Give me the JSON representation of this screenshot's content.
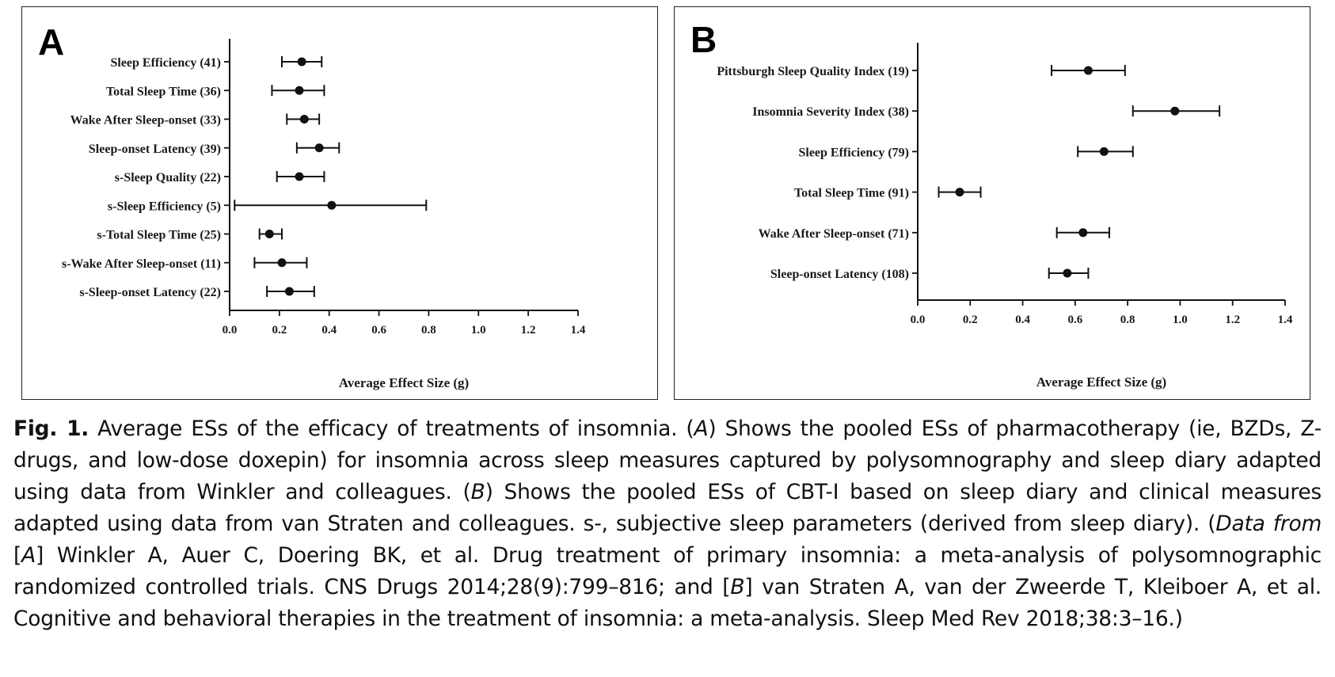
{
  "chart_data": [
    {
      "type": "forest",
      "panel_label": "A",
      "xlabel": "Average Effect Size (g)",
      "xlim": [
        0.0,
        1.4
      ],
      "xticks": [
        "0.0",
        "0.2",
        "0.4",
        "0.6",
        "0.8",
        "1.0",
        "1.2",
        "1.4"
      ],
      "grid": false,
      "categories": [
        "Sleep Efficiency (41)",
        "Total Sleep Time (36)",
        "Wake After Sleep-onset  (33)",
        "Sleep-onset Latency (39)",
        "s-Sleep Quality (22)",
        "s-Sleep Efficiency (5)",
        "s-Total Sleep Time (25)",
        "s-Wake After Sleep-onset  (11)",
        "s-Sleep-onset Latency (22)"
      ],
      "estimates": [
        0.29,
        0.28,
        0.3,
        0.36,
        0.28,
        0.41,
        0.16,
        0.21,
        0.24
      ],
      "ci_low": [
        0.21,
        0.17,
        0.23,
        0.27,
        0.19,
        0.02,
        0.12,
        0.1,
        0.15
      ],
      "ci_high": [
        0.37,
        0.38,
        0.36,
        0.44,
        0.38,
        0.79,
        0.21,
        0.31,
        0.34
      ]
    },
    {
      "type": "forest",
      "panel_label": "B",
      "xlabel": "Average Effect Size (g)",
      "xlim": [
        0.0,
        1.4
      ],
      "xticks": [
        "0.0",
        "0.2",
        "0.4",
        "0.6",
        "0.8",
        "1.0",
        "1.2",
        "1.4"
      ],
      "grid": false,
      "categories": [
        "Pittsburgh Sleep Quality Index (19)",
        "Insomnia Severity Index (38)",
        "Sleep Efficiency (79)",
        "Total Sleep Time (91)",
        "Wake After Sleep-onset  (71)",
        "Sleep-onset Latency (108)"
      ],
      "estimates": [
        0.65,
        0.98,
        0.71,
        0.16,
        0.63,
        0.57
      ],
      "ci_low": [
        0.51,
        0.82,
        0.61,
        0.08,
        0.53,
        0.5
      ],
      "ci_high": [
        0.79,
        1.15,
        0.82,
        0.24,
        0.73,
        0.65
      ]
    }
  ],
  "caption": {
    "fig_label": "Fig. 1.",
    "text_1": " Average ESs of the efficacy of treatments of insomnia. (",
    "a1": "A",
    "text_2": ") Shows the pooled ESs of pharmacotherapy (ie, BZDs, Z-drugs, and low-dose doxepin) for insomnia across sleep measures captured by polysomnography and sleep diary adapted using data from Winkler and colleagues. (",
    "b1": "B",
    "text_3": ") Shows the pooled ESs of CBT-I based on sleep diary and clinical measures adapted using data from van Straten and colleagues. s-, subjective sleep parameters (derived from sleep diary). (",
    "data_from": "Data from",
    "text_4": " [",
    "a2": "A",
    "text_5": "] Winkler A, Auer C, Doering BK, et al. Drug treatment of primary insomnia: a meta-analysis of polysomnographic randomized controlled trials. CNS Drugs 2014;28(9):799–816; and [",
    "b2": "B",
    "text_6": "] van Straten A, van der Zweerde T, Kleiboer A, et al. Cognitive and behavioral therapies in the treatment of insomnia: a meta-analysis. Sleep Med Rev 2018;38:3–16.)"
  }
}
